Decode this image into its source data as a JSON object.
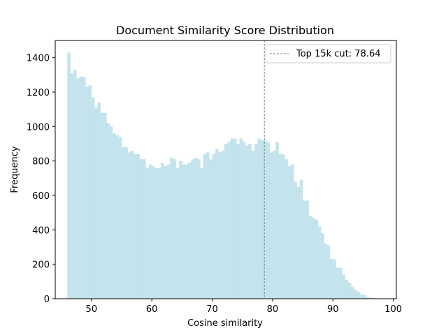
{
  "chart_data": {
    "type": "bar",
    "title": "Document Similarity Score Distribution",
    "xlabel": "Cosine similarity",
    "ylabel": "Frequency",
    "xlim": [
      44,
      100.5
    ],
    "ylim": [
      0,
      1500
    ],
    "xticks": [
      50,
      60,
      70,
      80,
      90,
      100
    ],
    "yticks": [
      0,
      200,
      400,
      600,
      800,
      1000,
      1200,
      1400
    ],
    "grid": false,
    "legend_position": "top-right",
    "bar_color": "#add8e6",
    "bin_start": 46,
    "bin_width": 0.5,
    "values": [
      1430,
      1310,
      1330,
      1280,
      1290,
      1290,
      1230,
      1240,
      1170,
      1110,
      1140,
      1080,
      1080,
      1020,
      1000,
      960,
      950,
      940,
      880,
      880,
      850,
      860,
      840,
      840,
      810,
      810,
      760,
      780,
      770,
      760,
      760,
      790,
      770,
      780,
      820,
      810,
      760,
      800,
      780,
      780,
      790,
      810,
      820,
      810,
      760,
      840,
      850,
      810,
      840,
      870,
      850,
      860,
      900,
      910,
      930,
      930,
      900,
      930,
      910,
      890,
      900,
      860,
      900,
      930,
      920,
      920,
      910,
      850,
      860,
      910,
      840,
      840,
      810,
      770,
      780,
      680,
      650,
      690,
      570,
      570,
      480,
      470,
      460,
      420,
      380,
      320,
      310,
      230,
      230,
      180,
      180,
      140,
      110,
      90,
      70,
      50,
      40,
      25,
      20,
      10,
      8,
      5,
      3,
      2,
      1
    ],
    "cutoff": {
      "x": 78.64,
      "label": "Top 15k cut: 78.64",
      "color": "#808080",
      "style": "dashed"
    }
  }
}
